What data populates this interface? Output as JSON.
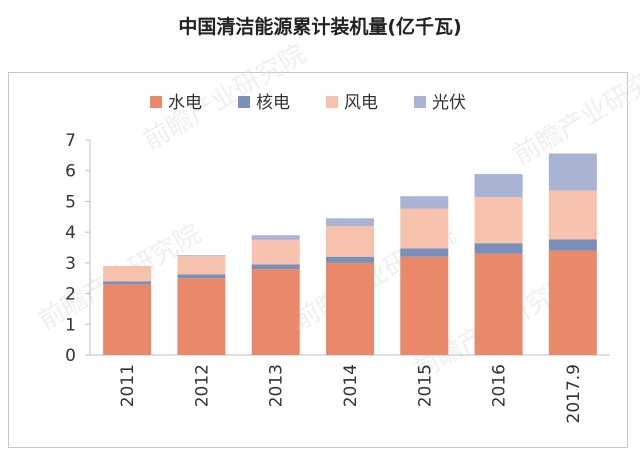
{
  "chart_data": {
    "type": "bar",
    "stacked": true,
    "title": "中国清洁能源累计装机量(亿千瓦)",
    "categories": [
      "2011",
      "2012",
      "2013",
      "2014",
      "2015",
      "2016",
      "2017.9"
    ],
    "series": [
      {
        "name": "水电",
        "color": "#e9896a",
        "values": [
          2.3,
          2.5,
          2.8,
          3.0,
          3.2,
          3.3,
          3.4
        ]
      },
      {
        "name": "核电",
        "color": "#7a8fba",
        "values": [
          0.1,
          0.12,
          0.15,
          0.2,
          0.27,
          0.34,
          0.36
        ]
      },
      {
        "name": "风电",
        "color": "#f6c2ad",
        "values": [
          0.5,
          0.6,
          0.8,
          1.0,
          1.3,
          1.5,
          1.6
        ]
      },
      {
        "name": "光伏",
        "color": "#a9b3d4",
        "values": [
          0.0,
          0.03,
          0.15,
          0.25,
          0.4,
          0.75,
          1.2
        ]
      }
    ],
    "ylim": [
      0,
      7
    ],
    "yticks": [
      0,
      1,
      2,
      3,
      4,
      5,
      6,
      7
    ],
    "legend_position": "top",
    "grid": false,
    "xlabel": "",
    "ylabel": ""
  },
  "watermark": {
    "text": "前瞻产业研究院"
  }
}
